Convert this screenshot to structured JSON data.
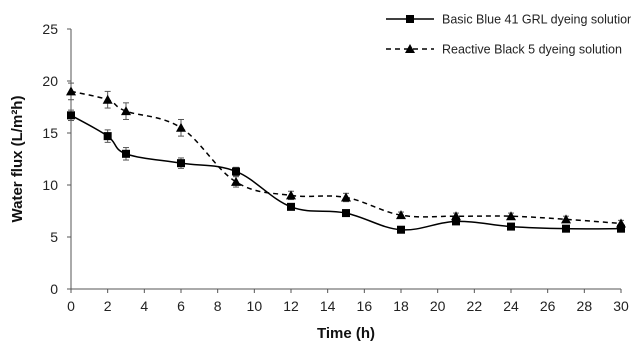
{
  "chart_data": {
    "type": "line",
    "title": "",
    "xlabel": "Time (h)",
    "ylabel": "Water flux (L/m²h)",
    "xlim": [
      0,
      30
    ],
    "ylim": [
      0,
      25
    ],
    "xticks": [
      0,
      2,
      4,
      6,
      8,
      10,
      12,
      14,
      16,
      18,
      20,
      22,
      24,
      26,
      28,
      30
    ],
    "yticks": [
      0,
      5,
      10,
      15,
      20,
      25
    ],
    "grid": false,
    "legend_position": "top-right",
    "series": [
      {
        "name": "Basic Blue 41 GRL dyeing solution",
        "line_style": "solid",
        "marker": "square",
        "color": "#000000",
        "x": [
          0,
          2,
          3,
          6,
          9,
          12,
          15,
          18,
          21,
          24,
          27,
          30
        ],
        "y": [
          16.7,
          14.7,
          13.0,
          12.1,
          11.3,
          7.9,
          7.3,
          5.7,
          6.5,
          6.0,
          5.8,
          5.8
        ],
        "error": [
          0.5,
          0.6,
          0.6,
          0.5,
          0.4,
          0.3,
          0.3,
          0.2,
          0.3,
          0.2,
          0.2,
          0.2
        ]
      },
      {
        "name": "Reactive Black 5 dyeing solution",
        "line_style": "dashed",
        "marker": "triangle",
        "color": "#000000",
        "x": [
          0,
          2,
          3,
          6,
          9,
          12,
          15,
          18,
          21,
          24,
          27,
          30
        ],
        "y": [
          19.0,
          18.2,
          17.1,
          15.5,
          10.3,
          9.0,
          8.8,
          7.1,
          7.0,
          7.0,
          6.7,
          6.3
        ],
        "error": [
          0.8,
          0.8,
          0.8,
          0.8,
          0.5,
          0.4,
          0.4,
          0.3,
          0.3,
          0.3,
          0.3,
          0.3
        ]
      }
    ]
  }
}
